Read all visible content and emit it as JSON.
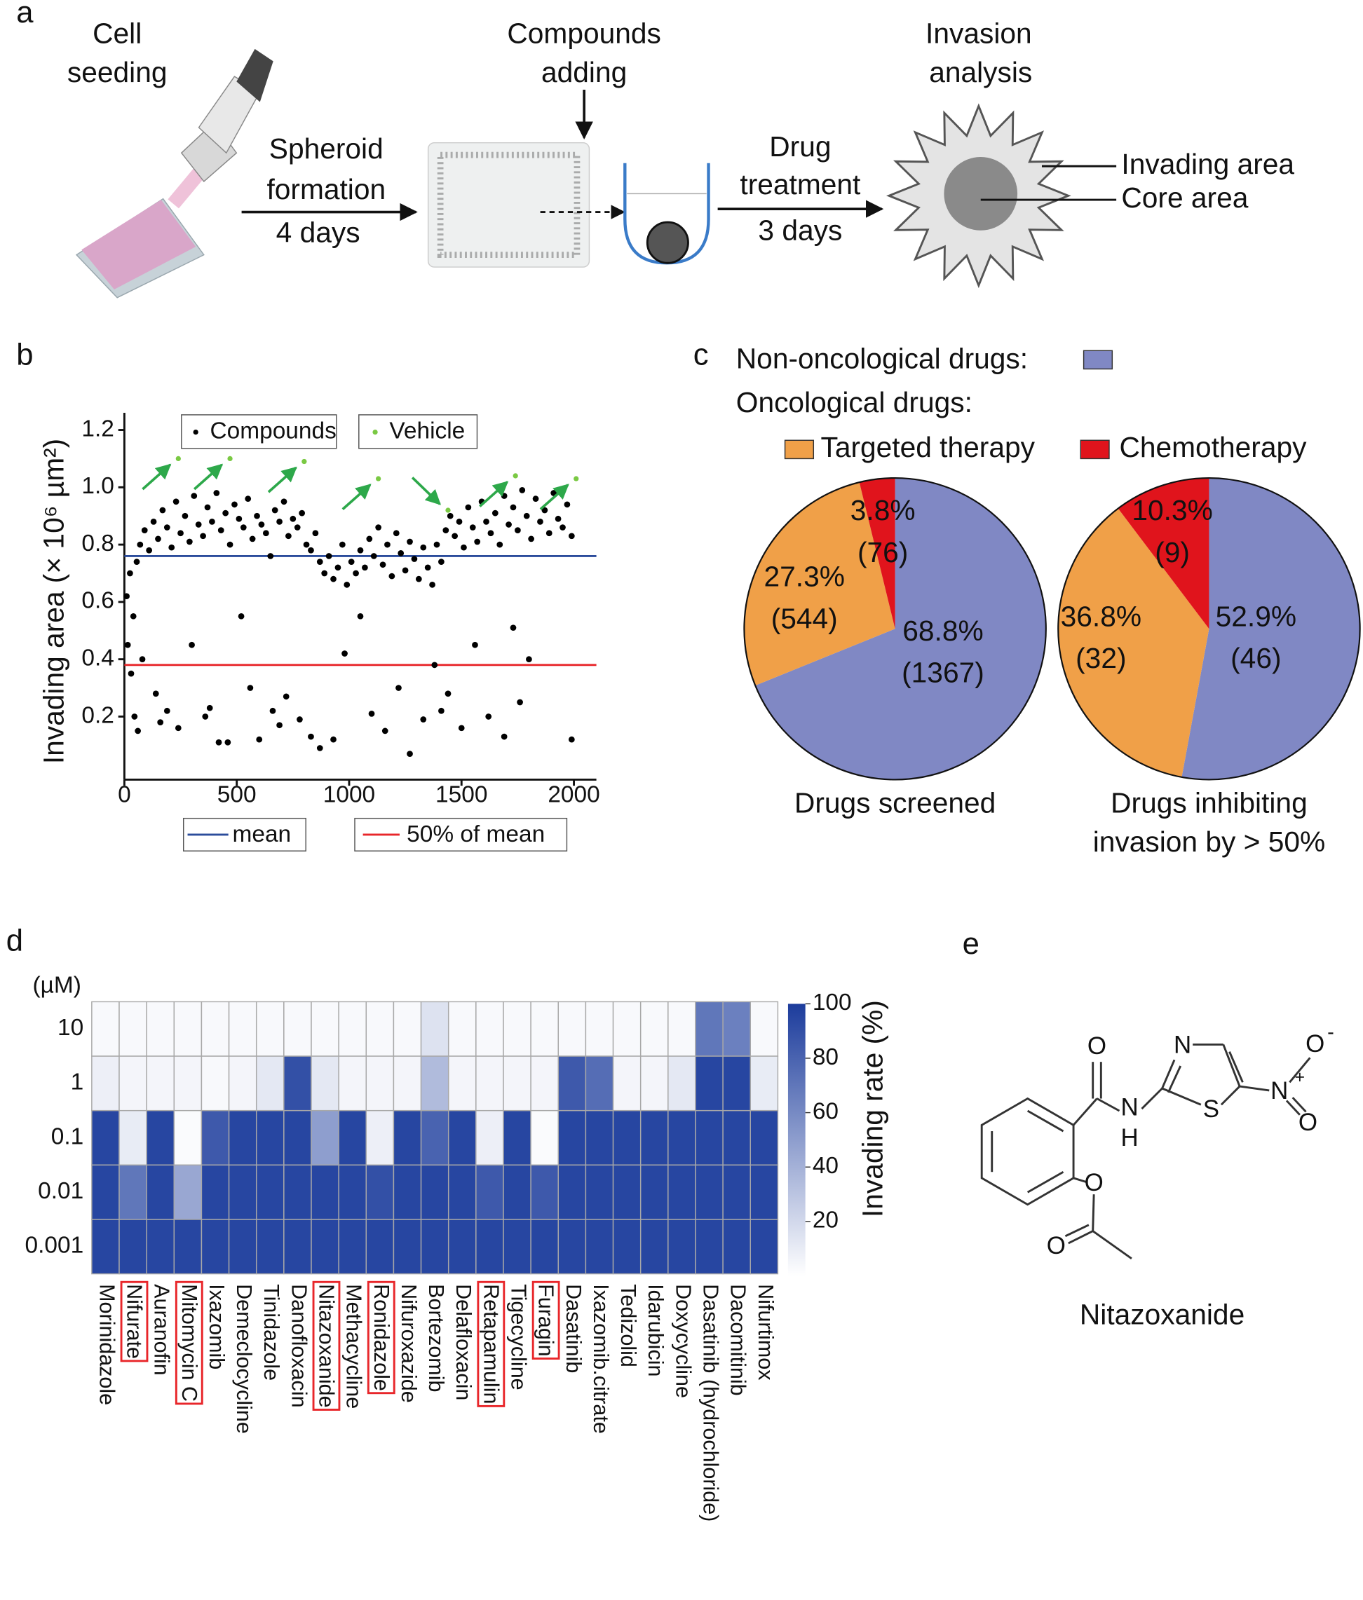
{
  "panel_labels": [
    "a",
    "b",
    "c",
    "d",
    "e"
  ],
  "schematic": {
    "steps": [
      [
        "Cell",
        "seeding"
      ],
      [
        "Compounds",
        "adding"
      ],
      [
        "Invasion",
        "analysis"
      ]
    ],
    "arrows": [
      {
        "label": [
          "Spheroid",
          "formation"
        ],
        "duration": "4 days"
      },
      {
        "label": [
          "Drug",
          "treatment"
        ],
        "duration": "3 days"
      }
    ],
    "callouts": [
      "Invading area",
      "Core area"
    ]
  },
  "chart_data": [
    {
      "type": "scatter",
      "ylabel": "Invading area (× 10⁶ µm²)",
      "xlim": [
        0,
        2100
      ],
      "ylim": [
        -0.02,
        1.26
      ],
      "xticks": [
        0,
        500,
        1000,
        1500,
        2000
      ],
      "yticks": [
        0.2,
        0.4,
        0.6,
        0.8,
        {
          "value": 1,
          "label": "1.0"
        },
        1.2
      ],
      "series": [
        {
          "name": "Compounds",
          "color": "#000000",
          "x": [
            10,
            25,
            40,
            55,
            70,
            90,
            110,
            130,
            150,
            170,
            190,
            210,
            230,
            250,
            270,
            290,
            310,
            330,
            350,
            370,
            390,
            410,
            430,
            450,
            470,
            490,
            510,
            530,
            550,
            570,
            590,
            610,
            630,
            650,
            670,
            690,
            710,
            730,
            750,
            770,
            790,
            810,
            830,
            850,
            870,
            890,
            910,
            930,
            950,
            970,
            990,
            1010,
            1030,
            1050,
            1070,
            1090,
            1110,
            1130,
            1150,
            1170,
            1190,
            1210,
            1230,
            1250,
            1270,
            1290,
            1310,
            1330,
            1350,
            1370,
            1390,
            1410,
            1430,
            1450,
            1470,
            1490,
            1510,
            1530,
            1550,
            1570,
            1590,
            1610,
            1630,
            1650,
            1670,
            1690,
            1710,
            1730,
            1750,
            1770,
            1790,
            1810,
            1830,
            1850,
            1870,
            1890,
            1910,
            1930,
            1950,
            1970,
            1990,
            15,
            30,
            45,
            60,
            80,
            140,
            160,
            190,
            240,
            300,
            360,
            380,
            420,
            460,
            520,
            560,
            600,
            660,
            690,
            720,
            780,
            830,
            870,
            930,
            980,
            1050,
            1100,
            1160,
            1220,
            1270,
            1330,
            1380,
            1410,
            1440,
            1500,
            1560,
            1620,
            1690,
            1730,
            1760,
            1800,
            1990
          ],
          "values": [
            0.62,
            0.7,
            0.55,
            0.74,
            0.8,
            0.85,
            0.78,
            0.88,
            0.82,
            0.92,
            0.86,
            0.79,
            0.95,
            0.84,
            0.9,
            0.81,
            0.97,
            0.87,
            0.83,
            0.93,
            0.88,
            0.98,
            0.85,
            0.91,
            0.8,
            0.94,
            0.89,
            0.86,
            0.96,
            0.82,
            0.9,
            0.87,
            0.84,
            0.76,
            0.92,
            0.88,
            0.95,
            0.83,
            0.89,
            0.86,
            0.91,
            0.8,
            0.78,
            0.84,
            0.74,
            0.7,
            0.76,
            0.68,
            0.72,
            0.8,
            0.66,
            0.74,
            0.7,
            0.78,
            0.72,
            0.82,
            0.76,
            0.86,
            0.73,
            0.8,
            0.69,
            0.84,
            0.77,
            0.71,
            0.81,
            0.75,
            0.68,
            0.79,
            0.72,
            0.66,
            0.8,
            0.74,
            0.85,
            0.9,
            0.83,
            0.88,
            0.79,
            0.93,
            0.86,
            0.81,
            0.95,
            0.88,
            0.84,
            0.91,
            0.8,
            0.97,
            0.87,
            0.93,
            0.85,
            0.99,
            0.9,
            0.82,
            0.96,
            0.88,
            0.92,
            0.84,
            0.98,
            0.89,
            0.86,
            0.94,
            0.83,
            0.45,
            0.35,
            0.2,
            0.15,
            0.4,
            0.28,
            0.18,
            0.22,
            0.16,
            0.45,
            0.2,
            0.23,
            0.11,
            0.11,
            0.55,
            0.3,
            0.12,
            0.22,
            0.17,
            0.27,
            0.19,
            0.13,
            0.09,
            0.12,
            0.42,
            0.55,
            0.21,
            0.15,
            0.3,
            0.07,
            0.19,
            0.38,
            0.22,
            0.28,
            0.16,
            0.45,
            0.2,
            0.13,
            0.51,
            0.25,
            0.4,
            0.12
          ]
        },
        {
          "name": "Vehicle",
          "color": "#7ac943",
          "x": [
            240,
            470,
            800,
            1130,
            1440,
            1740,
            2010
          ],
          "values": [
            1.1,
            1.1,
            1.09,
            1.03,
            0.92,
            1.04,
            1.03
          ]
        }
      ],
      "reference_lines": [
        {
          "name": "mean",
          "color": "#2b4c9b",
          "value": 0.76
        },
        {
          "name": "50% of mean",
          "color": "#e8262a",
          "value": 0.38
        }
      ]
    },
    {
      "type": "pie",
      "title": [
        "Drugs screened"
      ],
      "values": [
        68.8,
        27.3,
        3.8
      ],
      "value_labels": [
        "68.8%",
        "27.3%",
        "3.8%"
      ],
      "count_labels": [
        "(1367)",
        "(544)",
        "(76)"
      ],
      "colors": [
        "#8088c4",
        "#f0a048",
        "#e0141c"
      ]
    },
    {
      "type": "pie",
      "title": [
        "Drugs inhibiting",
        "invasion by > 50%"
      ],
      "values": [
        52.9,
        36.8,
        10.3
      ],
      "value_labels": [
        "52.9%",
        "36.8%",
        "10.3%"
      ],
      "count_labels": [
        "(46)",
        "(32)",
        "(9)"
      ],
      "colors": [
        "#8088c4",
        "#f0a048",
        "#e0141c"
      ]
    },
    {
      "type": "heatmap",
      "ylabel": "(µM)",
      "rows": [
        "10",
        "1",
        "0.1",
        "0.01",
        "0.001"
      ],
      "categories": [
        "Morinidazole",
        "Nifurate",
        "Auranofin",
        "Mitomycin C",
        "Ixazomib",
        "Demeclocycline",
        "Tinidazole",
        "Danofloxacin",
        "Nitazoxanide",
        "Methacycline",
        "Ronidazole",
        "Nifuroxazide",
        "Bortezomib",
        "Delafloxacin",
        "Retapamulin",
        "Tigecycline",
        "Furagin",
        "Dasatinib",
        "Ixazomib.citrate",
        "Tedizolid",
        "Idarubicin",
        "Doxycycline",
        "Dasatinib (hydrochloride)",
        "Dacomitinib",
        "Nifurtimox"
      ],
      "highlight": [
        false,
        true,
        false,
        true,
        false,
        false,
        false,
        false,
        true,
        false,
        true,
        false,
        false,
        false,
        true,
        false,
        true,
        false,
        false,
        false,
        false,
        false,
        false,
        false,
        false
      ],
      "highlight_color": "#e8262a",
      "values": [
        [
          3,
          3,
          3,
          3,
          3,
          3,
          3,
          3,
          3,
          3,
          3,
          3,
          15,
          3,
          3,
          3,
          3,
          3,
          3,
          3,
          3,
          3,
          70,
          65,
          3
        ],
        [
          8,
          5,
          5,
          5,
          3,
          5,
          12,
          90,
          12,
          5,
          5,
          5,
          35,
          5,
          5,
          5,
          5,
          85,
          75,
          5,
          5,
          12,
          95,
          95,
          10
        ],
        [
          95,
          10,
          95,
          2,
          85,
          95,
          95,
          95,
          50,
          95,
          8,
          95,
          80,
          95,
          8,
          95,
          2,
          95,
          95,
          95,
          95,
          95,
          95,
          95,
          95
        ],
        [
          95,
          70,
          95,
          45,
          95,
          95,
          95,
          95,
          95,
          95,
          90,
          95,
          95,
          95,
          85,
          95,
          85,
          95,
          95,
          95,
          95,
          95,
          95,
          95,
          95
        ],
        [
          95,
          95,
          95,
          95,
          95,
          95,
          95,
          95,
          95,
          95,
          95,
          95,
          95,
          95,
          95,
          95,
          95,
          95,
          95,
          95,
          95,
          95,
          95,
          95,
          95
        ]
      ],
      "zlim": [
        0,
        100
      ],
      "zticks": [
        20,
        40,
        60,
        80,
        100
      ],
      "zlabel": "Invading rate (%)",
      "colormap": [
        "#ffffff",
        "#1c3c9c"
      ]
    }
  ],
  "pie_legend": [
    {
      "name": "Non-oncological drugs:",
      "color": "#8088c4"
    },
    {
      "name": "Oncological drugs:"
    },
    {
      "name": "Targeted therapy",
      "color": "#f0a048"
    },
    {
      "name": "Chemotherapy",
      "color": "#e0141c"
    }
  ],
  "molecule": {
    "atoms": [
      "O",
      "N",
      "H",
      "N",
      "S",
      "N",
      "+",
      "O",
      "-",
      "O",
      "O",
      "O"
    ],
    "name": "Nitazoxanide"
  }
}
